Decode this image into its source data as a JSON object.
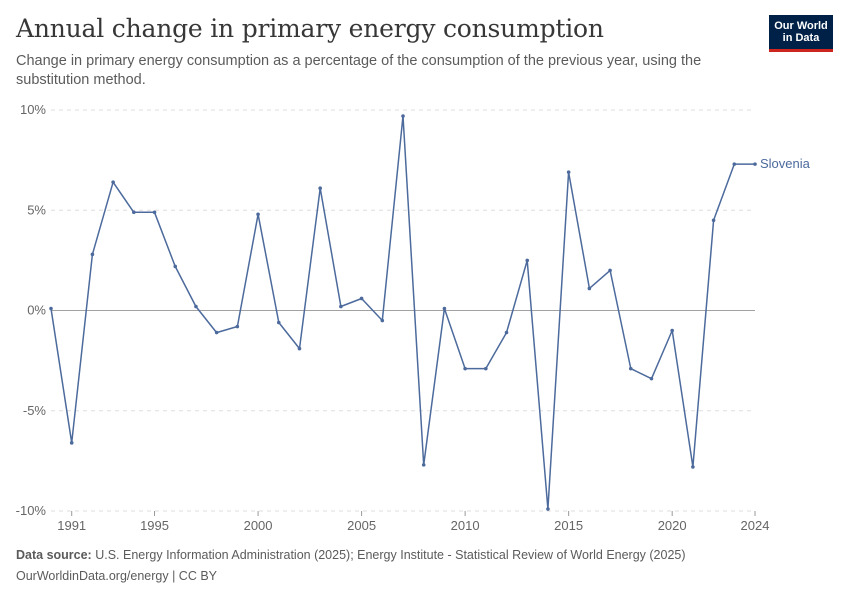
{
  "header": {
    "title": "Annual change in primary energy consumption",
    "subtitle": "Change in primary energy consumption as a percentage of the consumption of the previous year, using the substitution method."
  },
  "logo": {
    "line1": "Our World",
    "line2": "in Data",
    "bg_color": "#002147",
    "accent_color": "#ce261e"
  },
  "footer": {
    "source_label": "Data source:",
    "source_text": "U.S. Energy Information Administration (2025); Energy Institute - Statistical Review of World Energy (2025)",
    "link_text": "OurWorldinData.org/energy | CC BY"
  },
  "chart_data": {
    "type": "line",
    "title": "Annual change in primary energy consumption",
    "xlabel": "",
    "ylabel": "",
    "xlim": [
      1990,
      2024
    ],
    "ylim": [
      -10,
      10
    ],
    "x_ticks": [
      1991,
      1995,
      2000,
      2005,
      2010,
      2015,
      2020,
      2024
    ],
    "y_ticks": [
      -10,
      -5,
      0,
      5,
      10
    ],
    "y_tick_labels": [
      "-10%",
      "-5%",
      "0%",
      "5%",
      "10%"
    ],
    "grid": "horizontal dashed",
    "series": [
      {
        "name": "Slovenia",
        "color": "#4c6a9c",
        "x": [
          1990,
          1991,
          1992,
          1993,
          1994,
          1995,
          1996,
          1997,
          1998,
          1999,
          2000,
          2001,
          2002,
          2003,
          2004,
          2005,
          2006,
          2007,
          2008,
          2009,
          2010,
          2011,
          2012,
          2013,
          2014,
          2015,
          2016,
          2017,
          2018,
          2019,
          2020,
          2021,
          2022,
          2023,
          2024
        ],
        "values": [
          0.1,
          -6.6,
          2.8,
          6.4,
          4.9,
          4.9,
          2.2,
          0.2,
          -1.1,
          -0.8,
          4.8,
          -0.6,
          -1.9,
          6.1,
          0.2,
          0.6,
          -0.5,
          9.7,
          -7.7,
          0.1,
          -2.9,
          -2.9,
          -1.1,
          2.5,
          -9.9,
          6.9,
          1.1,
          2.0,
          -2.9,
          -3.4,
          -1.0,
          -7.8,
          4.5,
          7.3,
          7.3
        ]
      }
    ]
  }
}
